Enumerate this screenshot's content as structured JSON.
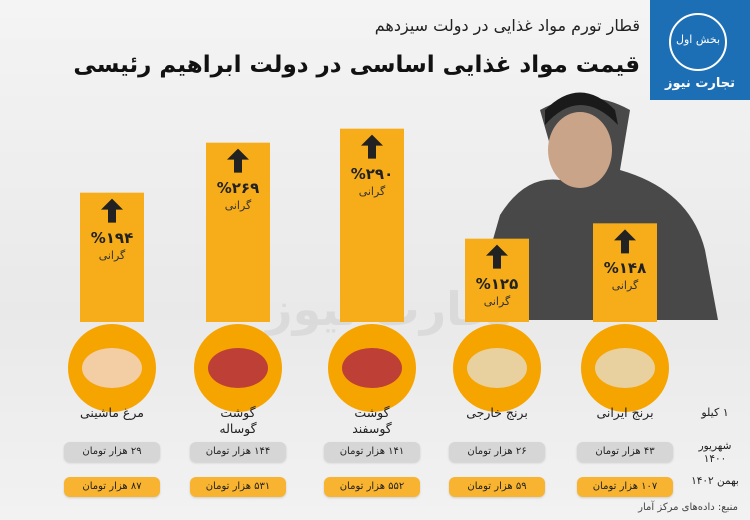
{
  "header": {
    "subtitle": "قطار تورم مواد غذایی در دولت سیزدهم",
    "title": "قیمت مواد غذایی اساسی در دولت ابراهیم رئیسی",
    "badge": "بخش اول",
    "brand": "تجارت نیوز"
  },
  "chart_data": {
    "type": "bar",
    "categories": [
      "برنج ایرانی",
      "برنج خارجی",
      "گوشت گوسفند",
      "گوشت گوساله",
      "مرغ ماشینی"
    ],
    "values": [
      148,
      125,
      290,
      269,
      194
    ],
    "value_labels": [
      "%۱۴۸",
      "%۱۲۵",
      "%۲۹۰",
      "%۲۶۹",
      "%۱۹۴"
    ],
    "value_caption": "گرانی",
    "color": "#f7ad19",
    "ylim": [
      0,
      300
    ]
  },
  "table": {
    "row_labels": [
      "۱ کیلو",
      "شهریور ۱۴۰۰",
      "بهمن ۱۴۰۲"
    ],
    "rows": [
      [
        "۴۳ هزار تومان",
        "۲۶ هزار تومان",
        "۱۴۱ هزار تومان",
        "۱۴۴ هزار تومان",
        "۲۹ هزار تومان"
      ],
      [
        "۱۰۷ هزار تومان",
        "۵۹ هزار تومان",
        "۵۵۲ هزار تومان",
        "۵۳۱ هزار تومان",
        "۸۷ هزار تومان"
      ]
    ]
  },
  "source": "منبع: داده‌های مرکز آمار"
}
